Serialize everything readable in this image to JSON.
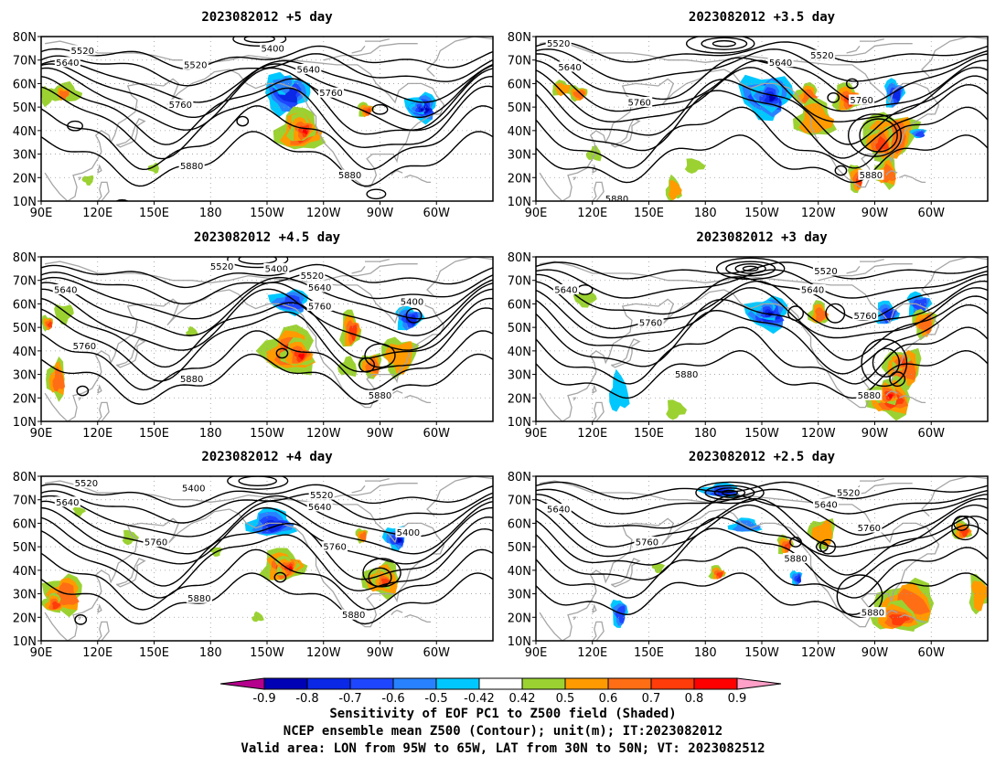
{
  "panels": [
    {
      "id": "p1",
      "title": "2023082012  +5 day"
    },
    {
      "id": "p2",
      "title": "2023082012  +3.5 day"
    },
    {
      "id": "p3",
      "title": "2023082012  +4.5 day"
    },
    {
      "id": "p4",
      "title": "2023082012  +3 day"
    },
    {
      "id": "p5",
      "title": "2023082012  +4 day"
    },
    {
      "id": "p6",
      "title": "2023082012  +2.5 day"
    }
  ],
  "axes": {
    "lat_labels": [
      "80N",
      "70N",
      "60N",
      "50N",
      "40N",
      "30N",
      "20N",
      "10N"
    ],
    "lat_values": [
      80,
      70,
      60,
      50,
      40,
      30,
      20,
      10
    ],
    "lon_labels": [
      "90E",
      "120E",
      "150E",
      "180",
      "150W",
      "120W",
      "90W",
      "60W"
    ],
    "lon_values": [
      90,
      120,
      150,
      180,
      210,
      240,
      270,
      300
    ],
    "lon_range": [
      90,
      330
    ],
    "lat_range": [
      10,
      80
    ]
  },
  "contour_labels": [
    [
      {
        "t": "5400",
        "lon": 213,
        "lat": 75
      },
      {
        "t": "5520",
        "lon": 172,
        "lat": 68
      },
      {
        "t": "5520",
        "lon": 112,
        "lat": 74
      },
      {
        "t": "5640",
        "lon": 104,
        "lat": 69
      },
      {
        "t": "5640",
        "lon": 232,
        "lat": 66
      },
      {
        "t": "5760",
        "lon": 164,
        "lat": 51
      },
      {
        "t": "5760",
        "lon": 244,
        "lat": 56
      },
      {
        "t": "5880",
        "lon": 170,
        "lat": 25
      },
      {
        "t": "5880",
        "lon": 254,
        "lat": 21
      }
    ],
    [
      {
        "t": "5520",
        "lon": 102,
        "lat": 77
      },
      {
        "t": "5520",
        "lon": 242,
        "lat": 72
      },
      {
        "t": "5640",
        "lon": 108,
        "lat": 67
      },
      {
        "t": "5640",
        "lon": 220,
        "lat": 69
      },
      {
        "t": "5760",
        "lon": 145,
        "lat": 52
      },
      {
        "t": "5760",
        "lon": 263,
        "lat": 53
      },
      {
        "t": "5880",
        "lon": 268,
        "lat": 21
      },
      {
        "t": "5880",
        "lon": 133,
        "lat": 11
      }
    ],
    [
      {
        "t": "5400",
        "lon": 215,
        "lat": 75
      },
      {
        "t": "5520",
        "lon": 186,
        "lat": 76
      },
      {
        "t": "5520",
        "lon": 234,
        "lat": 72
      },
      {
        "t": "5640",
        "lon": 103,
        "lat": 66
      },
      {
        "t": "5640",
        "lon": 238,
        "lat": 67
      },
      {
        "t": "5760",
        "lon": 113,
        "lat": 42
      },
      {
        "t": "5760",
        "lon": 238,
        "lat": 59
      },
      {
        "t": "5400",
        "lon": 287,
        "lat": 61
      },
      {
        "t": "5880",
        "lon": 170,
        "lat": 28
      },
      {
        "t": "5880",
        "lon": 270,
        "lat": 21
      }
    ],
    [
      {
        "t": "5520",
        "lon": 244,
        "lat": 74
      },
      {
        "t": "5640",
        "lon": 106,
        "lat": 66
      },
      {
        "t": "5640",
        "lon": 237,
        "lat": 66
      },
      {
        "t": "5760",
        "lon": 151,
        "lat": 52
      },
      {
        "t": "5760",
        "lon": 265,
        "lat": 55
      },
      {
        "t": "5880",
        "lon": 170,
        "lat": 30
      },
      {
        "t": "5880",
        "lon": 267,
        "lat": 21
      }
    ],
    [
      {
        "t": "5520",
        "lon": 114,
        "lat": 77
      },
      {
        "t": "5400",
        "lon": 171,
        "lat": 75
      },
      {
        "t": "5520",
        "lon": 239,
        "lat": 72
      },
      {
        "t": "5640",
        "lon": 104,
        "lat": 69
      },
      {
        "t": "5640",
        "lon": 238,
        "lat": 67
      },
      {
        "t": "5760",
        "lon": 151,
        "lat": 52
      },
      {
        "t": "5760",
        "lon": 246,
        "lat": 50
      },
      {
        "t": "5400",
        "lon": 285,
        "lat": 56
      },
      {
        "t": "5880",
        "lon": 174,
        "lat": 28
      },
      {
        "t": "5880",
        "lon": 256,
        "lat": 21
      }
    ],
    [
      {
        "t": "5640",
        "lon": 102,
        "lat": 66
      },
      {
        "t": "5520",
        "lon": 256,
        "lat": 73
      },
      {
        "t": "5640",
        "lon": 244,
        "lat": 68
      },
      {
        "t": "5760",
        "lon": 149,
        "lat": 52
      },
      {
        "t": "5760",
        "lon": 267,
        "lat": 58
      },
      {
        "t": "5880",
        "lon": 228,
        "lat": 45
      },
      {
        "t": "5880",
        "lon": 269,
        "lat": 22
      }
    ]
  ],
  "colorbar": {
    "labels": [
      "-0.9",
      "-0.8",
      "-0.7",
      "-0.6",
      "-0.5",
      "-0.42",
      "0.42",
      "0.5",
      "0.6",
      "0.7",
      "0.8",
      "0.9"
    ],
    "colors": [
      "#0000b4",
      "#0a28e6",
      "#1e46ff",
      "#2882ff",
      "#00c8ff",
      "#ffffff",
      "#9bd232",
      "#ff9b00",
      "#ff6e14",
      "#ff3c0a",
      "#ff0000"
    ],
    "left_arrow": "#b4008c",
    "right_arrow": "#ffa0c8"
  },
  "caption": {
    "line1": "Sensitivity of EOF PC1 to Z500 field (Shaded)",
    "line2": "NCEP ensemble mean Z500 (Contour); unit(m); IT:2023082012",
    "line3": "Valid area: LON from 95W to 65W, LAT from 30N to 50N; VT: 2023082512"
  }
}
